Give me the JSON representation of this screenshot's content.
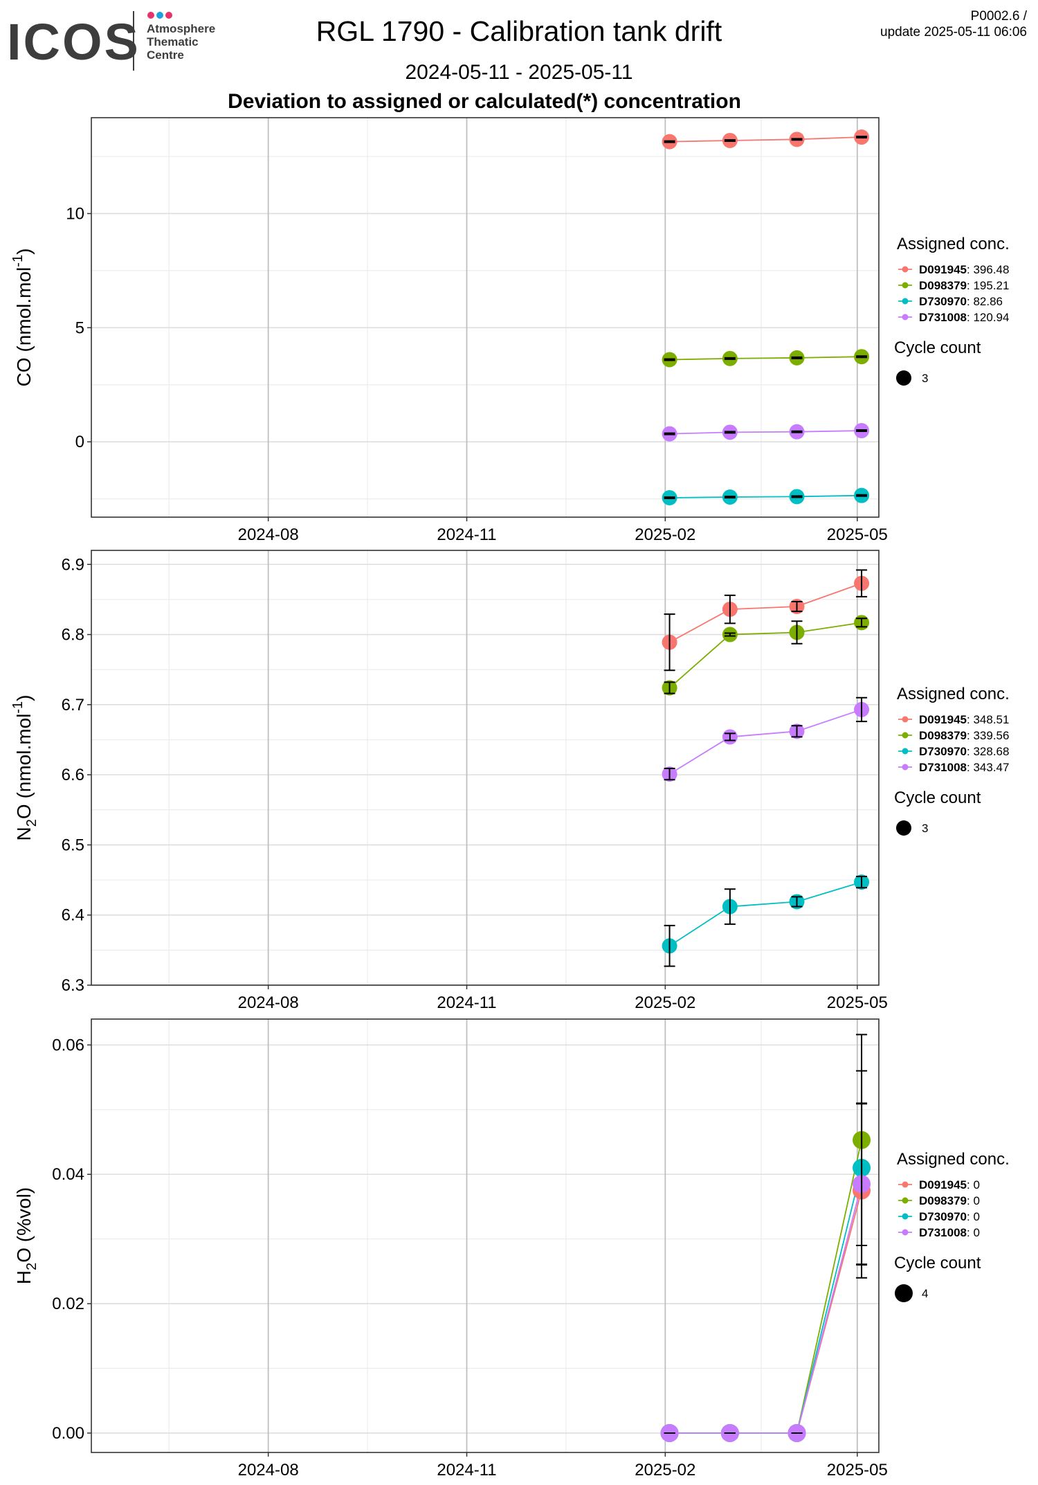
{
  "header": {
    "logo_text": "ICOS",
    "logo_subtext": [
      "Atmosphere",
      "Thematic",
      "Centre"
    ],
    "title": "RGL 1790 - Calibration tank drift",
    "date_range": "2024-05-11 - 2025-05-11",
    "subtitle": "Deviation to assigned or calculated(*) concentration",
    "version_line1": "P0002.6 /",
    "version_line2": "update  2025-05-11 06:06"
  },
  "colors": {
    "D091945": "#F8766D",
    "D098379": "#7CAE00",
    "D730970": "#00BFC4",
    "D731008": "#C77CFF",
    "logo_text": "#3d3d3d",
    "logo_dots": [
      "#e8336a",
      "#1aa3dd",
      "#e8336a"
    ]
  },
  "chart_data": [
    {
      "type": "scatter",
      "ylabel_main": "CO (nmol.mol",
      "ylabel_sup": "-1",
      "ylabel_end": ")",
      "xlim": [
        "2024-05-11",
        "2025-05-11"
      ],
      "ylim": [
        -3.3,
        14.2
      ],
      "yticks": [
        0,
        5,
        10
      ],
      "yminor": [
        -2.5,
        2.5,
        7.5,
        12.5
      ],
      "xticks": [
        "2024-08",
        "2024-11",
        "2025-02",
        "2025-05"
      ],
      "x": [
        "2025-02-03",
        "2025-03-03",
        "2025-04-03",
        "2025-05-03"
      ],
      "series": [
        {
          "name": "D091945",
          "values": [
            13.15,
            13.2,
            13.25,
            13.35
          ],
          "err": [
            0.03,
            0.03,
            0.03,
            0.03
          ]
        },
        {
          "name": "D098379",
          "values": [
            3.6,
            3.65,
            3.68,
            3.73
          ],
          "err": [
            0.03,
            0.03,
            0.03,
            0.03
          ]
        },
        {
          "name": "D730970",
          "values": [
            -2.45,
            -2.42,
            -2.4,
            -2.35
          ],
          "err": [
            0.03,
            0.03,
            0.03,
            0.03
          ]
        },
        {
          "name": "D731008",
          "values": [
            0.35,
            0.42,
            0.44,
            0.49
          ],
          "err": [
            0.03,
            0.03,
            0.03,
            0.03
          ]
        }
      ],
      "legend": {
        "title": "Assigned conc.",
        "items": [
          {
            "name": "D091945",
            "value": ": 396.48"
          },
          {
            "name": "D098379",
            "value": ": 195.21"
          },
          {
            "name": "D730970",
            "value": ": 82.86"
          },
          {
            "name": "D731008",
            "value": ": 120.94"
          }
        ],
        "size_title": "Cycle count",
        "size_value": "3"
      }
    },
    {
      "type": "scatter",
      "ylabel_pre": "N",
      "ylabel_sub": "2",
      "ylabel_main": "O (nmol.mol",
      "ylabel_sup": "-1",
      "ylabel_end": ")",
      "xlim": [
        "2024-05-11",
        "2025-05-11"
      ],
      "ylim": [
        6.3,
        6.92
      ],
      "yticks": [
        6.3,
        6.4,
        6.5,
        6.6,
        6.7,
        6.8,
        6.9
      ],
      "yminor": [
        6.35,
        6.45,
        6.55,
        6.65,
        6.75,
        6.85
      ],
      "xticks": [
        "2024-08",
        "2024-11",
        "2025-02",
        "2025-05"
      ],
      "x": [
        "2025-02-03",
        "2025-03-03",
        "2025-04-03",
        "2025-05-03"
      ],
      "series": [
        {
          "name": "D091945",
          "values": [
            6.789,
            6.836,
            6.84,
            6.873
          ],
          "err": [
            0.04,
            0.02,
            0.007,
            0.019
          ]
        },
        {
          "name": "D098379",
          "values": [
            6.724,
            6.8,
            6.803,
            6.817
          ],
          "err": [
            0.008,
            0.002,
            0.016,
            0.006
          ]
        },
        {
          "name": "D730970",
          "values": [
            6.356,
            6.412,
            6.419,
            6.447
          ],
          "err": [
            0.029,
            0.025,
            0.007,
            0.008
          ]
        },
        {
          "name": "D731008",
          "values": [
            6.601,
            6.654,
            6.662,
            6.693
          ],
          "err": [
            0.008,
            0.005,
            0.008,
            0.017
          ]
        }
      ],
      "legend": {
        "title": "Assigned conc.",
        "items": [
          {
            "name": "D091945",
            "value": ": 348.51"
          },
          {
            "name": "D098379",
            "value": ": 339.56"
          },
          {
            "name": "D730970",
            "value": ": 328.68"
          },
          {
            "name": "D731008",
            "value": ": 343.47"
          }
        ],
        "size_title": "Cycle count",
        "size_value": "3"
      }
    },
    {
      "type": "scatter",
      "ylabel_pre": "H",
      "ylabel_sub": "2",
      "ylabel_main": "O (%vol)",
      "xlim": [
        "2024-05-11",
        "2025-05-11"
      ],
      "ylim": [
        -0.003,
        0.064
      ],
      "yticks": [
        0.0,
        0.02,
        0.04,
        0.06
      ],
      "yticks_labels": [
        "0.00",
        "0.02",
        "0.04",
        "0.06"
      ],
      "yminor": [
        0.01,
        0.03,
        0.05
      ],
      "xticks": [
        "2024-08",
        "2024-11",
        "2025-02",
        "2025-05"
      ],
      "x": [
        "2025-02-03",
        "2025-03-03",
        "2025-04-03",
        "2025-05-03"
      ],
      "series": [
        {
          "name": "D091945",
          "values": [
            0,
            0,
            0,
            0.0375
          ],
          "err": [
            0,
            0,
            0,
            0.0135
          ]
        },
        {
          "name": "D098379",
          "values": [
            0,
            0,
            0,
            0.0453
          ],
          "err": [
            0,
            0,
            0,
            0.0163
          ]
        },
        {
          "name": "D730970",
          "values": [
            0,
            0,
            0,
            0.041
          ],
          "err": [
            0,
            0,
            0,
            0.015
          ]
        },
        {
          "name": "D731008",
          "values": [
            0,
            0,
            0,
            0.0385
          ],
          "err": [
            0,
            0,
            0,
            0.0124
          ]
        }
      ],
      "legend": {
        "title": "Assigned conc.",
        "items": [
          {
            "name": "D091945",
            "value": ": 0"
          },
          {
            "name": "D098379",
            "value": ": 0"
          },
          {
            "name": "D730970",
            "value": ": 0"
          },
          {
            "name": "D731008",
            "value": ": 0"
          }
        ],
        "size_title": "Cycle count",
        "size_value": "4"
      }
    }
  ]
}
